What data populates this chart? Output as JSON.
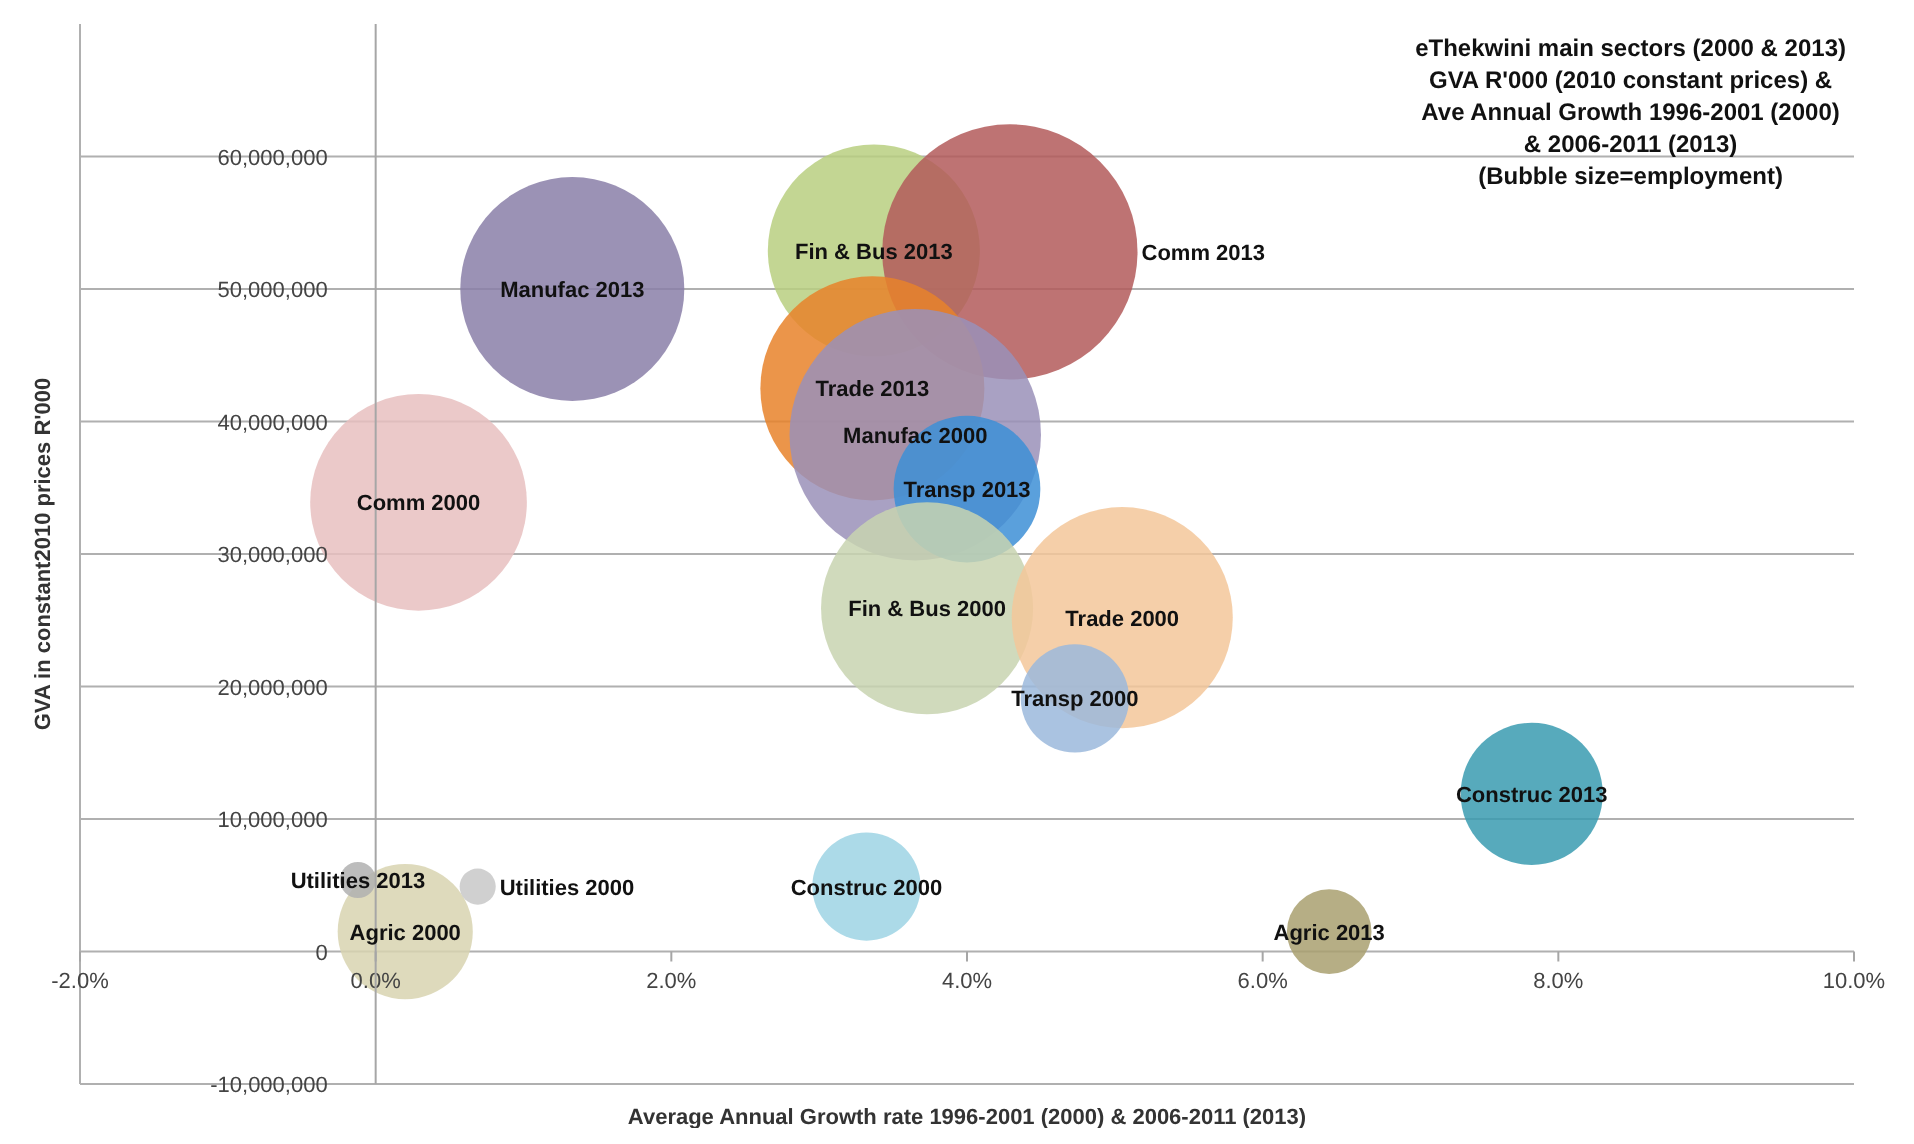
{
  "chart_data": {
    "type": "bubble",
    "title": "eThekwini main sectors (2000 & 2013)\nGVA R'000 (2010 constant prices) &\nAve Annual Growth 1996-2001 (2000)\n& 2006-2011 (2013)\n(Bubble size=employment)",
    "xlabel": "Average Annual Growth rate 1996-2001 (2000) & 2006-2011 (2013)",
    "ylabel": "GVA in constant2010 prices R'000",
    "xlim": [
      -2,
      10
    ],
    "xticks": [
      {
        "value": -2,
        "label": "-2.0%"
      },
      {
        "value": 0,
        "label": "0.0%"
      },
      {
        "value": 2,
        "label": "2.0%"
      },
      {
        "value": 4,
        "label": "4.0%"
      },
      {
        "value": 6,
        "label": "6.0%"
      },
      {
        "value": 8,
        "label": "8.0%"
      },
      {
        "value": 10,
        "label": "10.0%"
      }
    ],
    "ylim": [
      -10000000,
      70000000
    ],
    "yticks": [
      {
        "value": -10000000,
        "label": "-10,000,000"
      },
      0,
      {
        "value": 10000000,
        "label": "10,000,000"
      },
      {
        "value": 20000000,
        "label": "20,000,000"
      },
      {
        "value": 30000000,
        "label": "30,000,000"
      },
      {
        "value": 40000000,
        "label": "40,000,000"
      },
      {
        "value": 50000000,
        "label": "50,000,000"
      },
      {
        "value": 60000000,
        "label": "60,000,000"
      }
    ],
    "grid": "y",
    "series": [
      {
        "name": "Fin & Bus 2013",
        "color": "#b8cf80",
        "x": [
          3.37
        ],
        "values": [
          52900000
        ],
        "sizes": [
          0.69
        ]
      },
      {
        "name": "Comm 2013",
        "color": "#b35a5a",
        "x": [
          4.29
        ],
        "values": [
          52800000
        ],
        "sizes": [
          1
        ]
      },
      {
        "name": "Trade 2013",
        "color": "#e8832a",
        "x": [
          3.36
        ],
        "values": [
          42500000
        ],
        "sizes": [
          0.77
        ]
      },
      {
        "name": "Manufac 2000",
        "color": "#9a90b8",
        "x": [
          3.65
        ],
        "values": [
          39000000
        ],
        "sizes": [
          0.97
        ]
      },
      {
        "name": "Transp 2013",
        "color": "#3d8fd6",
        "x": [
          4.0
        ],
        "values": [
          34900000
        ],
        "sizes": [
          0.33
        ]
      },
      {
        "name": "Fin & Bus 2000",
        "color": "#c8d4b0",
        "x": [
          3.73
        ],
        "values": [
          25900000
        ],
        "sizes": [
          0.69
        ]
      },
      {
        "name": "Trade 2000",
        "color": "#f3c79a",
        "x": [
          5.05
        ],
        "values": [
          25200000
        ],
        "sizes": [
          0.75
        ]
      },
      {
        "name": "Transp 2000",
        "color": "#9bb8dc",
        "x": [
          4.73
        ],
        "values": [
          19100000
        ],
        "sizes": [
          0.18
        ]
      },
      {
        "name": "Manufac 2013",
        "color": "#8a7fa8",
        "x": [
          1.33
        ],
        "values": [
          50000000
        ],
        "sizes": [
          0.77
        ]
      },
      {
        "name": "Comm 2000",
        "color": "#e8c0c0",
        "x": [
          0.29
        ],
        "values": [
          33900000
        ],
        "sizes": [
          0.72
        ]
      },
      {
        "name": "Construc 2013",
        "color": "#3a9bb0",
        "x": [
          7.82
        ],
        "values": [
          11900000
        ],
        "sizes": [
          0.31
        ]
      },
      {
        "name": "Construc 2000",
        "color": "#9dd4e4",
        "x": [
          3.32
        ],
        "values": [
          4900000
        ],
        "sizes": [
          0.18
        ]
      },
      {
        "name": "Agric 2013",
        "color": "#a9a070",
        "x": [
          6.45
        ],
        "values": [
          1500000
        ],
        "sizes": [
          0.11
        ]
      },
      {
        "name": "Agric 2000",
        "color": "#d8d4b0",
        "x": [
          0.2
        ],
        "values": [
          1500000
        ],
        "sizes": [
          0.28
        ]
      },
      {
        "name": "Utilities 2013",
        "color": "#b0b0b0",
        "x": [
          -0.12
        ],
        "values": [
          5400000
        ],
        "sizes": [
          0.02
        ]
      },
      {
        "name": "Utilities 2000",
        "color": "#c8c8c8",
        "x": [
          0.69
        ],
        "values": [
          4900000
        ],
        "sizes": [
          0.02
        ]
      }
    ]
  }
}
